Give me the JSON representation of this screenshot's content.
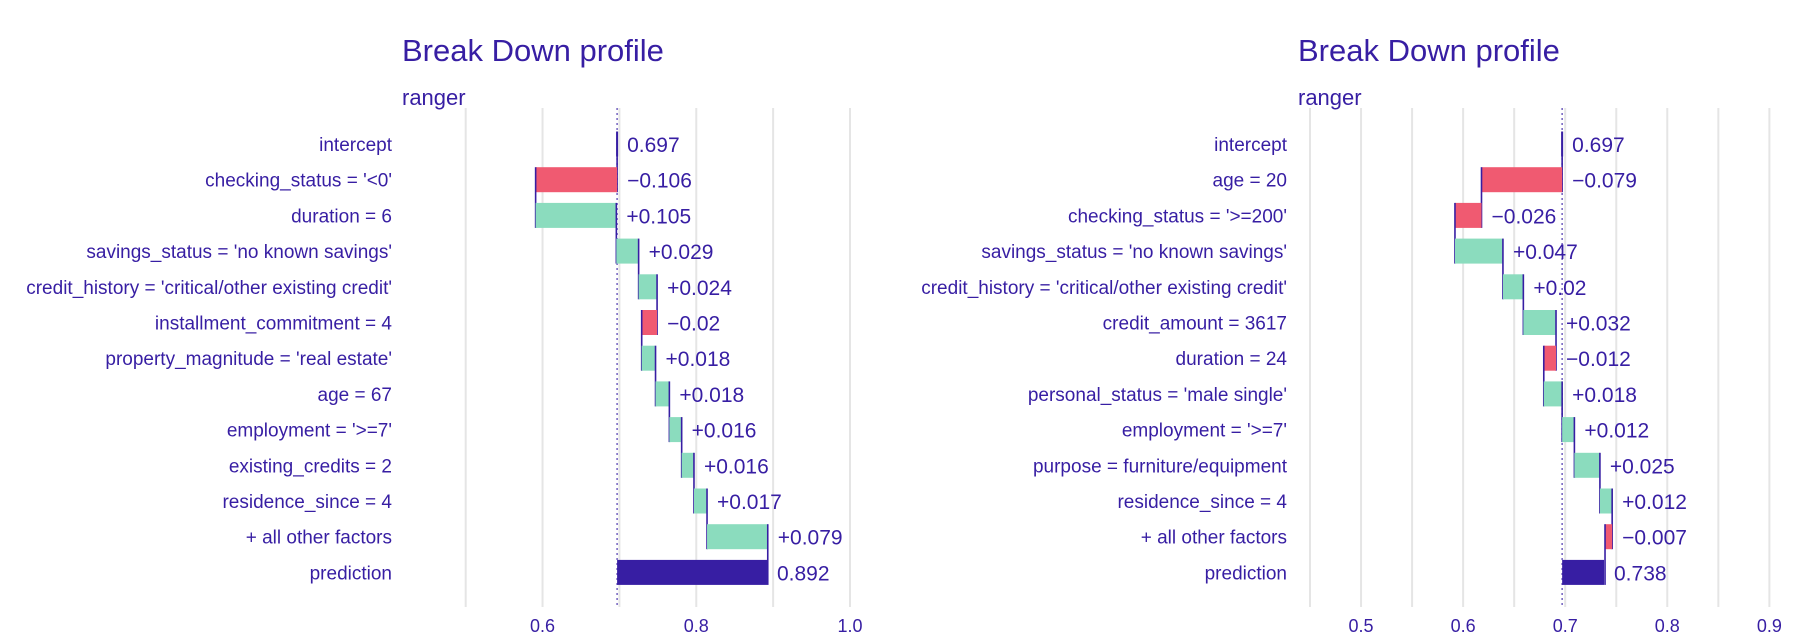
{
  "colors": {
    "text": "#371ea3",
    "increase": "#8bdcbe",
    "decrease": "#f05a71",
    "prediction": "#371ea3",
    "connector": "#371ea3",
    "baseline": "#371ea3",
    "grid": "#e5e5e5"
  },
  "chart_data": [
    {
      "type": "waterfall",
      "title": "Break Down profile",
      "subtitle": "ranger",
      "xlim": [
        0.49,
        1.0
      ],
      "ticks": [
        0.6,
        0.8,
        1.0
      ],
      "tick_labels": [
        "0.6",
        "0.8",
        "1.0"
      ],
      "minor_grid": [
        0.5,
        0.7,
        0.9
      ],
      "baseline": 0.697,
      "grid": true,
      "rows": [
        {
          "label": "intercept",
          "kind": "intercept",
          "start": 0.697,
          "end": 0.697,
          "value_label": "0.697"
        },
        {
          "label": "checking_status = '<0'",
          "kind": "decrease",
          "start": 0.697,
          "end": 0.591,
          "value_label": "−0.106"
        },
        {
          "label": "duration = 6",
          "kind": "increase",
          "start": 0.591,
          "end": 0.696,
          "value_label": "+0.105"
        },
        {
          "label": "savings_status = 'no known savings'",
          "kind": "increase",
          "start": 0.696,
          "end": 0.725,
          "value_label": "+0.029"
        },
        {
          "label": "credit_history = 'critical/other existing credit'",
          "kind": "increase",
          "start": 0.725,
          "end": 0.749,
          "value_label": "+0.024"
        },
        {
          "label": "installment_commitment = 4",
          "kind": "decrease",
          "start": 0.749,
          "end": 0.729,
          "value_label": "−0.02"
        },
        {
          "label": "property_magnitude = 'real estate'",
          "kind": "increase",
          "start": 0.729,
          "end": 0.747,
          "value_label": "+0.018"
        },
        {
          "label": "age = 67",
          "kind": "increase",
          "start": 0.747,
          "end": 0.765,
          "value_label": "+0.018"
        },
        {
          "label": "employment = '>=7'",
          "kind": "increase",
          "start": 0.765,
          "end": 0.781,
          "value_label": "+0.016"
        },
        {
          "label": "existing_credits = 2",
          "kind": "increase",
          "start": 0.781,
          "end": 0.797,
          "value_label": "+0.016"
        },
        {
          "label": "residence_since = 4",
          "kind": "increase",
          "start": 0.797,
          "end": 0.814,
          "value_label": "+0.017"
        },
        {
          "label": "+ all other factors",
          "kind": "increase",
          "start": 0.814,
          "end": 0.893,
          "value_label": "+0.079"
        },
        {
          "label": "prediction",
          "kind": "prediction",
          "start": 0.697,
          "end": 0.892,
          "value_label": "0.892"
        }
      ]
    },
    {
      "type": "waterfall",
      "title": "Break Down profile",
      "subtitle": "ranger",
      "xlim": [
        0.45,
        0.93
      ],
      "ticks": [
        0.5,
        0.6,
        0.7,
        0.8,
        0.9
      ],
      "tick_labels": [
        "0.5",
        "0.6",
        "0.7",
        "0.8",
        "0.9"
      ],
      "minor_grid": [
        0.45,
        0.55,
        0.65,
        0.75,
        0.85
      ],
      "baseline": 0.697,
      "grid": true,
      "rows": [
        {
          "label": "intercept",
          "kind": "intercept",
          "start": 0.697,
          "end": 0.697,
          "value_label": "0.697"
        },
        {
          "label": "age = 20",
          "kind": "decrease",
          "start": 0.697,
          "end": 0.618,
          "value_label": "−0.079"
        },
        {
          "label": "checking_status = '>=200'",
          "kind": "decrease",
          "start": 0.618,
          "end": 0.592,
          "value_label": "−0.026"
        },
        {
          "label": "savings_status = 'no known savings'",
          "kind": "increase",
          "start": 0.592,
          "end": 0.639,
          "value_label": "+0.047"
        },
        {
          "label": "credit_history = 'critical/other existing credit'",
          "kind": "increase",
          "start": 0.639,
          "end": 0.659,
          "value_label": "+0.02"
        },
        {
          "label": "credit_amount = 3617",
          "kind": "increase",
          "start": 0.659,
          "end": 0.691,
          "value_label": "+0.032"
        },
        {
          "label": "duration = 24",
          "kind": "decrease",
          "start": 0.691,
          "end": 0.679,
          "value_label": "−0.012"
        },
        {
          "label": "personal_status = 'male single'",
          "kind": "increase",
          "start": 0.679,
          "end": 0.697,
          "value_label": "+0.018"
        },
        {
          "label": "employment = '>=7'",
          "kind": "increase",
          "start": 0.697,
          "end": 0.709,
          "value_label": "+0.012"
        },
        {
          "label": "purpose = furniture/equipment",
          "kind": "increase",
          "start": 0.709,
          "end": 0.734,
          "value_label": "+0.025"
        },
        {
          "label": "residence_since = 4",
          "kind": "increase",
          "start": 0.734,
          "end": 0.746,
          "value_label": "+0.012"
        },
        {
          "label": "+ all other factors",
          "kind": "decrease",
          "start": 0.746,
          "end": 0.739,
          "value_label": "−0.007"
        },
        {
          "label": "prediction",
          "kind": "prediction",
          "start": 0.697,
          "end": 0.738,
          "value_label": "0.738"
        }
      ]
    }
  ]
}
